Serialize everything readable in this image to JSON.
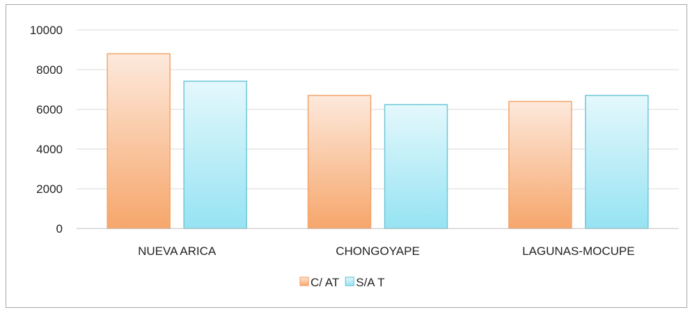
{
  "chart_data": {
    "type": "bar",
    "categories": [
      "NUEVA ARICA",
      "CHONGOYAPE",
      "LAGUNAS-MOCUPE"
    ],
    "series": [
      {
        "name": "C/ AT",
        "values": [
          8800,
          6700,
          6400
        ],
        "color": "#f6a66b",
        "color_light": "#fde9dc",
        "stroke": "#f3a46a"
      },
      {
        "name": "S/A T",
        "values": [
          7420,
          6240,
          6700
        ],
        "color": "#96e3f3",
        "color_light": "#e4f8fc",
        "stroke": "#6fc7d8"
      }
    ],
    "ylim": [
      0,
      10000
    ],
    "yticks": [
      0,
      2000,
      4000,
      6000,
      8000,
      10000
    ],
    "grid": true,
    "legend": "bottom",
    "title": "",
    "xlabel": "",
    "ylabel": ""
  }
}
